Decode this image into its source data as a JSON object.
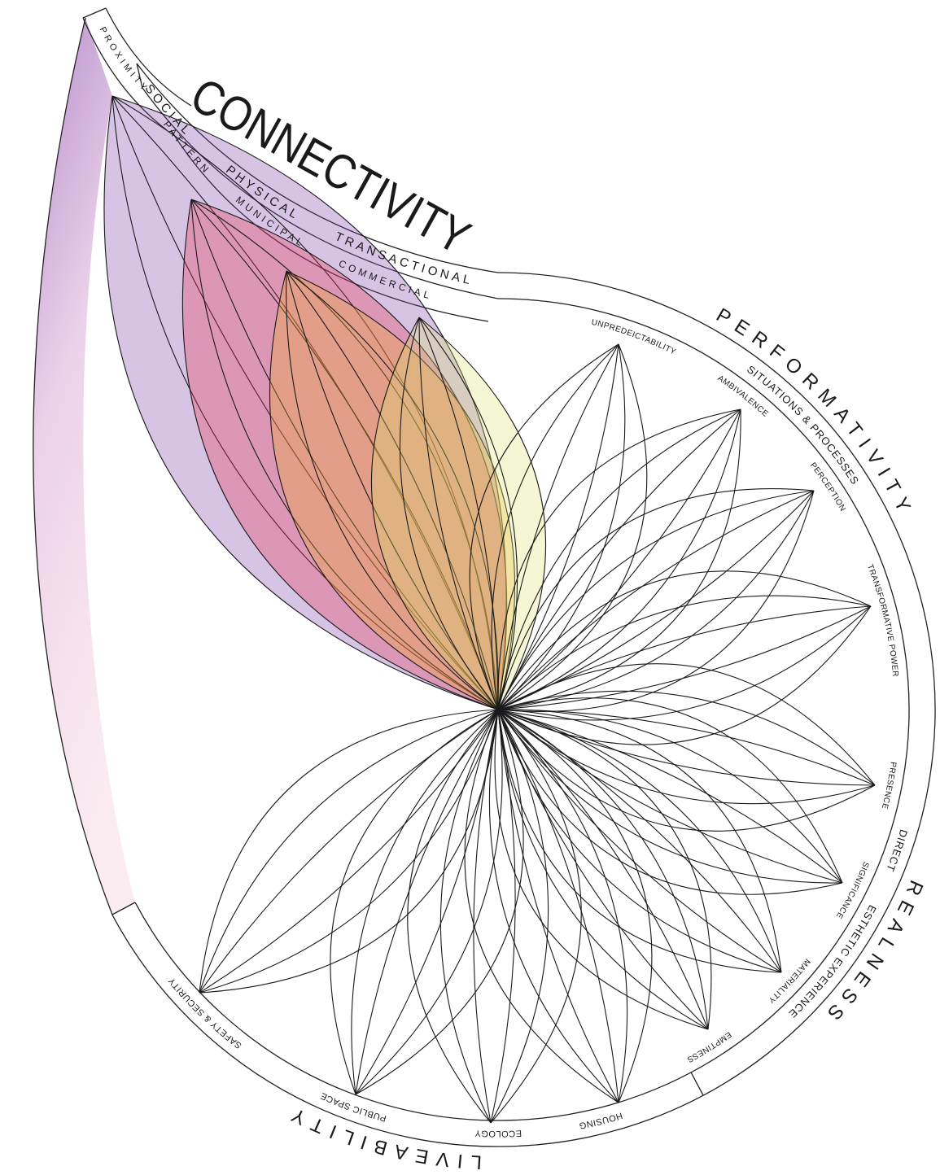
{
  "connectivity": {
    "title": "CONNECTIVITY",
    "proximity_band": [
      "PROXIMITY"
    ],
    "social_band": [
      "SOCIAL",
      "PHYSICAL",
      "TRANSACTIONAL"
    ],
    "pattern_band": [
      "PATTERN",
      "MUNICIPAL",
      "COMMERCIAL"
    ]
  },
  "performativity": {
    "title": "PERFORMATIVITY",
    "band": [
      "SITUATIONS & PROCESSES"
    ],
    "labels": [
      "UNPREDEICTABILITY",
      "AMBIVALENCE",
      "PERCEPTION",
      "TRANSFORMATIVE POWER"
    ]
  },
  "realness": {
    "title": "REALNESS",
    "band": [
      "DIRECT",
      "ESTHETIC EXPERIENCE"
    ],
    "labels": [
      "PRESENCE",
      "SIGNIFICANCE",
      "MATERIALITY",
      "EMPTINESS"
    ]
  },
  "liveability": {
    "title": "LIVEABILITY",
    "labels": [
      "SAFETY & SECURITY",
      "PUBLIC SPACE",
      "ECOLOGY",
      "HOUSING"
    ]
  }
}
